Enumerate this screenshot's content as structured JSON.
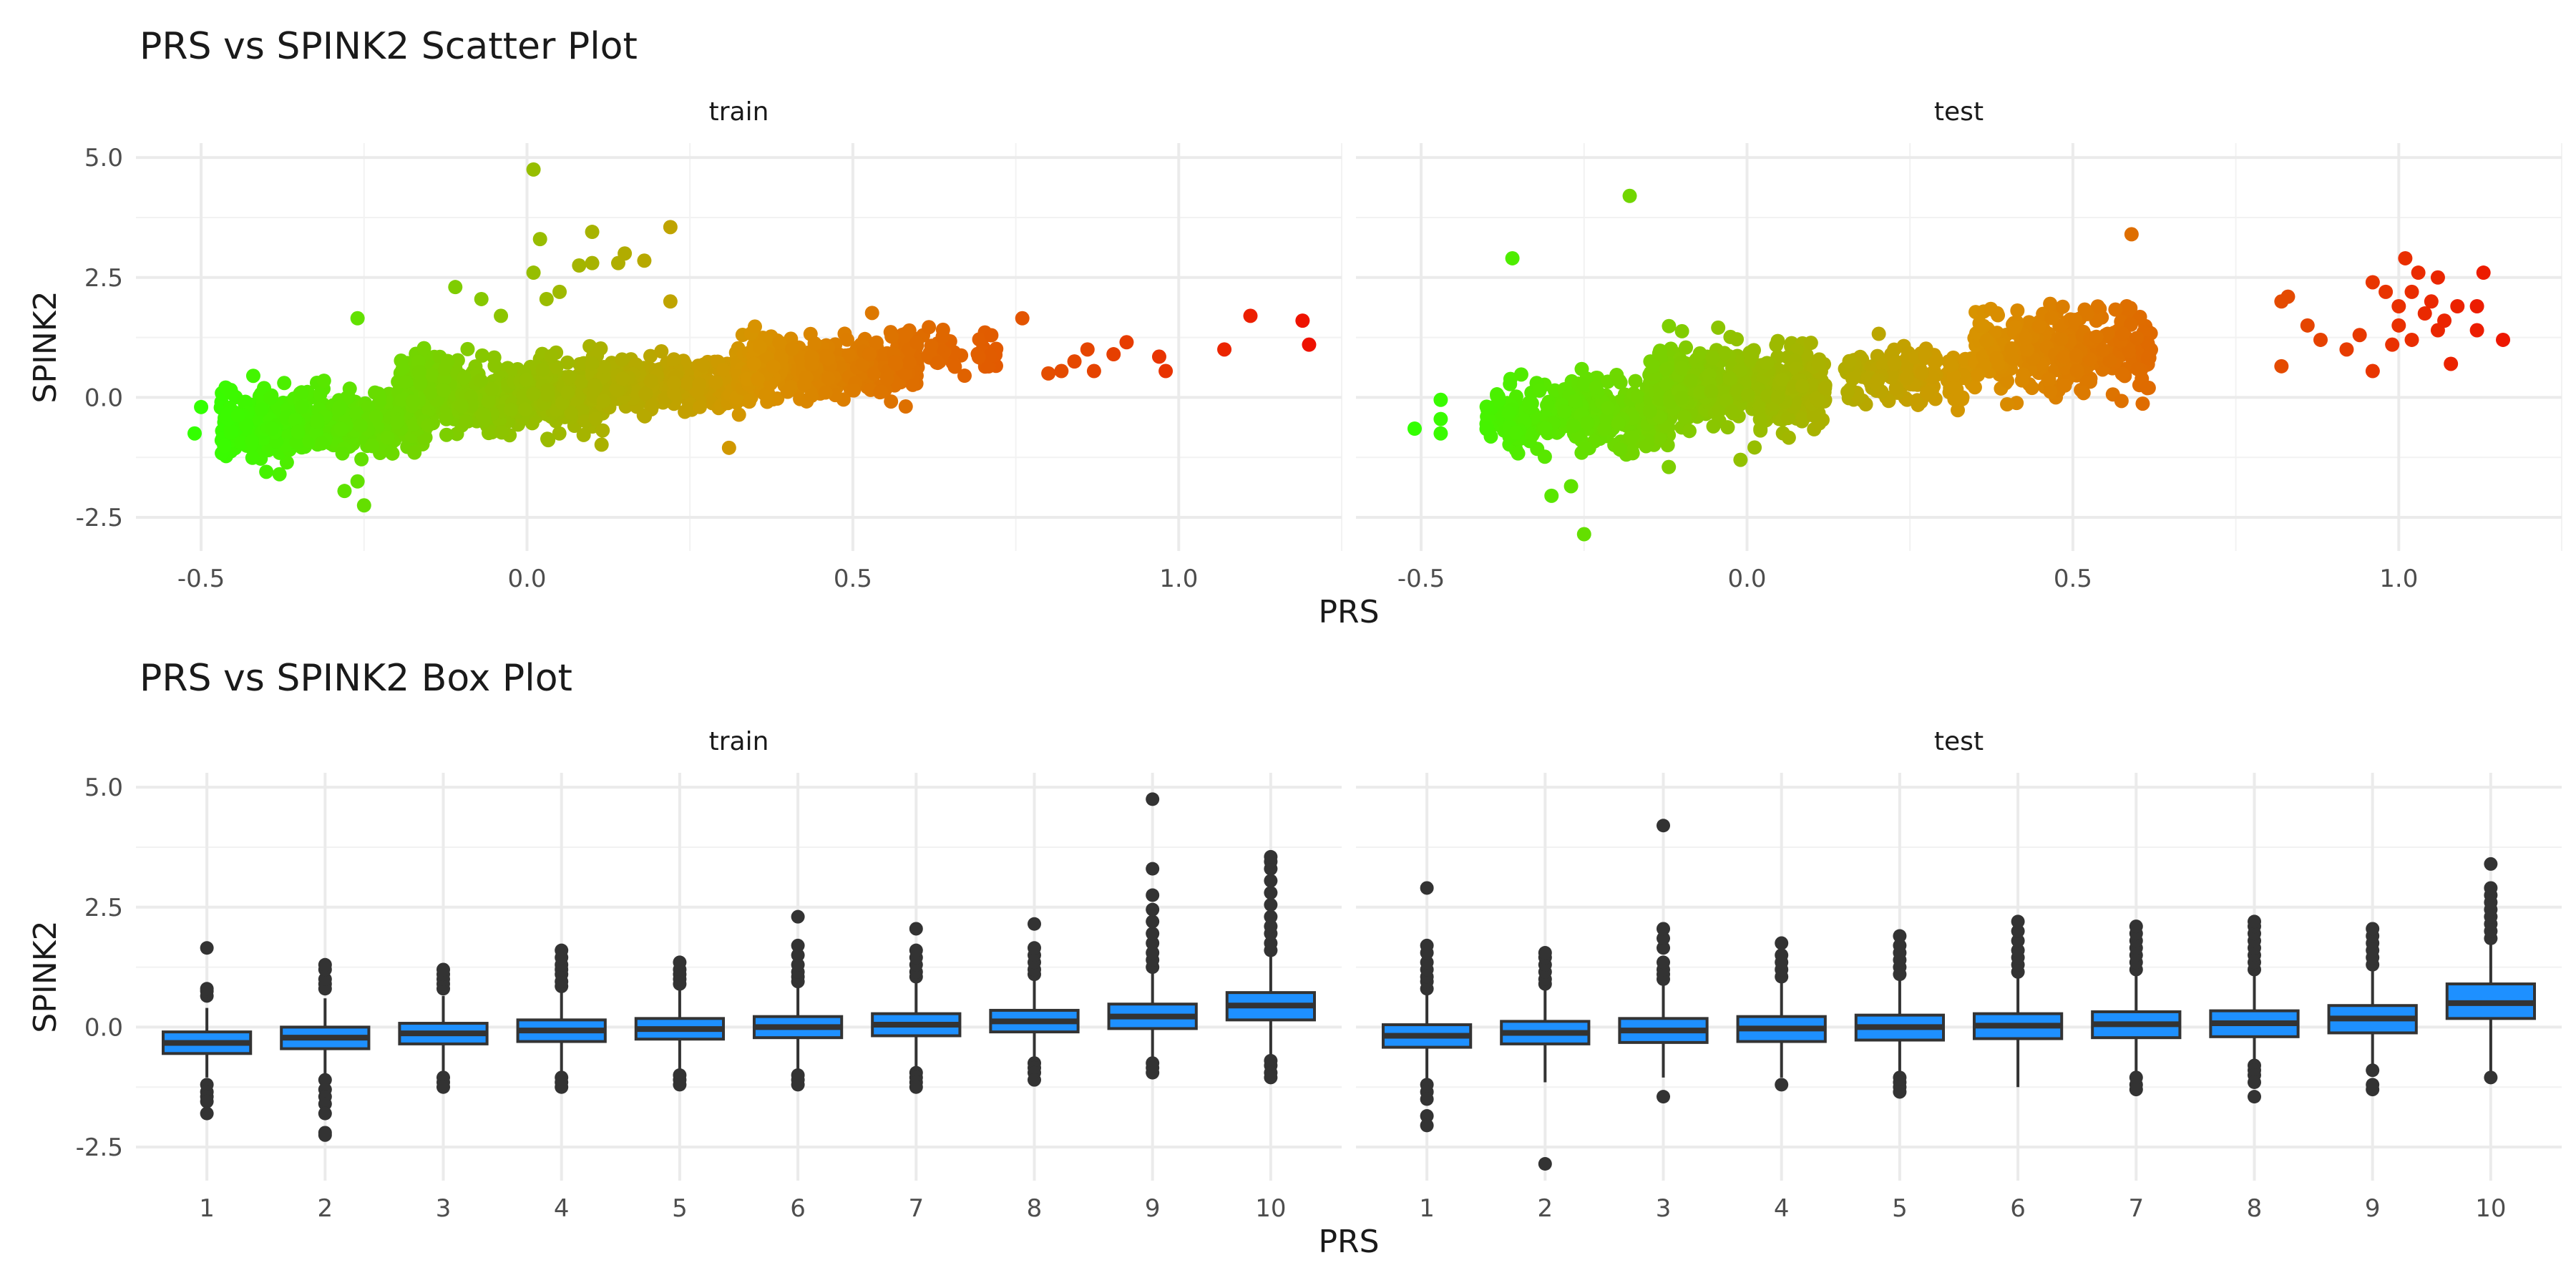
{
  "chart_data": [
    {
      "type": "scatter",
      "title": "PRS vs SPINK2 Scatter Plot",
      "xlabel": "PRS",
      "ylabel": "SPINK2",
      "xlim": [
        -0.6,
        1.25
      ],
      "ylim": [
        -3.2,
        5.3
      ],
      "x_ticks": [
        "-0.5",
        "0.0",
        "0.5",
        "1.0"
      ],
      "y_ticks": [
        "-2.5",
        "0.0",
        "2.5",
        "5.0"
      ],
      "color_scale": {
        "low": "#33ff00",
        "mid": "#d89300",
        "high": "#ee1100",
        "domain": [
          -0.5,
          1.2
        ]
      },
      "facets": [
        {
          "label": "train",
          "clusters": [
            {
              "x_range": [
                -0.47,
                -0.15
              ],
              "y_center": -0.55,
              "y_spread": 0.32,
              "n": 520
            },
            {
              "x_range": [
                -0.2,
                0.12
              ],
              "y_center": 0.05,
              "y_spread": 0.35,
              "n": 680
            },
            {
              "x_range": [
                0.1,
                0.35
              ],
              "y_center": 0.3,
              "y_spread": 0.28,
              "n": 280
            },
            {
              "x_range": [
                0.32,
                0.6
              ],
              "y_center": 0.7,
              "y_spread": 0.3,
              "n": 420
            },
            {
              "x_range": [
                0.55,
                0.72
              ],
              "y_center": 0.95,
              "y_spread": 0.25,
              "n": 60
            }
          ],
          "points": [
            {
              "x": -0.5,
              "y": -0.2
            },
            {
              "x": -0.51,
              "y": -0.75
            },
            {
              "x": -0.42,
              "y": 0.45
            },
            {
              "x": -0.4,
              "y": -1.55
            },
            {
              "x": -0.26,
              "y": -1.75
            },
            {
              "x": -0.25,
              "y": -2.25
            },
            {
              "x": -0.28,
              "y": -1.95
            },
            {
              "x": -0.26,
              "y": 1.65
            },
            {
              "x": -0.11,
              "y": 2.3
            },
            {
              "x": -0.07,
              "y": 2.05
            },
            {
              "x": -0.04,
              "y": 1.7
            },
            {
              "x": 0.01,
              "y": 4.75
            },
            {
              "x": 0.02,
              "y": 3.3
            },
            {
              "x": 0.01,
              "y": 2.6
            },
            {
              "x": 0.03,
              "y": 2.05
            },
            {
              "x": 0.05,
              "y": 2.2
            },
            {
              "x": 0.08,
              "y": 2.75
            },
            {
              "x": 0.1,
              "y": 2.8
            },
            {
              "x": 0.1,
              "y": 3.45
            },
            {
              "x": 0.14,
              "y": 2.8
            },
            {
              "x": 0.15,
              "y": 3.0
            },
            {
              "x": 0.18,
              "y": 2.85
            },
            {
              "x": 0.22,
              "y": 3.55
            },
            {
              "x": 0.22,
              "y": 2.0
            },
            {
              "x": 0.31,
              "y": -1.05
            },
            {
              "x": 0.76,
              "y": 1.65
            },
            {
              "x": 0.8,
              "y": 0.5
            },
            {
              "x": 0.82,
              "y": 0.55
            },
            {
              "x": 0.84,
              "y": 0.75
            },
            {
              "x": 0.86,
              "y": 1.0
            },
            {
              "x": 0.87,
              "y": 0.55
            },
            {
              "x": 0.9,
              "y": 0.9
            },
            {
              "x": 0.92,
              "y": 1.15
            },
            {
              "x": 0.97,
              "y": 0.85
            },
            {
              "x": 0.98,
              "y": 0.55
            },
            {
              "x": 1.07,
              "y": 1.0
            },
            {
              "x": 1.11,
              "y": 1.7
            },
            {
              "x": 1.19,
              "y": 1.6
            },
            {
              "x": 1.2,
              "y": 1.1
            }
          ]
        },
        {
          "label": "test",
          "clusters": [
            {
              "x_range": [
                -0.4,
                -0.12
              ],
              "y_center": -0.35,
              "y_spread": 0.35,
              "n": 380
            },
            {
              "x_range": [
                -0.15,
                0.12
              ],
              "y_center": 0.2,
              "y_spread": 0.4,
              "n": 520
            },
            {
              "x_range": [
                0.15,
                0.35
              ],
              "y_center": 0.45,
              "y_spread": 0.3,
              "n": 160
            },
            {
              "x_range": [
                0.35,
                0.62
              ],
              "y_center": 1.0,
              "y_spread": 0.45,
              "n": 320
            }
          ],
          "points": [
            {
              "x": -0.51,
              "y": -0.65
            },
            {
              "x": -0.47,
              "y": -0.05
            },
            {
              "x": -0.47,
              "y": -0.45
            },
            {
              "x": -0.47,
              "y": -0.75
            },
            {
              "x": -0.36,
              "y": 2.9
            },
            {
              "x": -0.3,
              "y": -2.05
            },
            {
              "x": -0.27,
              "y": -1.85
            },
            {
              "x": -0.25,
              "y": -2.85
            },
            {
              "x": -0.18,
              "y": 4.2
            },
            {
              "x": -0.12,
              "y": -1.45
            },
            {
              "x": -0.01,
              "y": -1.3
            },
            {
              "x": 0.59,
              "y": 3.4
            },
            {
              "x": 0.82,
              "y": 2.0
            },
            {
              "x": 0.83,
              "y": 2.1
            },
            {
              "x": 0.82,
              "y": 0.65
            },
            {
              "x": 0.86,
              "y": 1.5
            },
            {
              "x": 0.88,
              "y": 1.2
            },
            {
              "x": 0.92,
              "y": 1.0
            },
            {
              "x": 0.94,
              "y": 1.3
            },
            {
              "x": 0.96,
              "y": 2.4
            },
            {
              "x": 0.96,
              "y": 0.55
            },
            {
              "x": 0.98,
              "y": 2.2
            },
            {
              "x": 0.99,
              "y": 1.1
            },
            {
              "x": 1.0,
              "y": 1.9
            },
            {
              "x": 1.0,
              "y": 1.5
            },
            {
              "x": 1.01,
              "y": 2.9
            },
            {
              "x": 1.02,
              "y": 1.2
            },
            {
              "x": 1.02,
              "y": 2.2
            },
            {
              "x": 1.03,
              "y": 2.6
            },
            {
              "x": 1.04,
              "y": 1.75
            },
            {
              "x": 1.05,
              "y": 2.0
            },
            {
              "x": 1.06,
              "y": 1.4
            },
            {
              "x": 1.06,
              "y": 2.5
            },
            {
              "x": 1.07,
              "y": 1.6
            },
            {
              "x": 1.08,
              "y": 0.7
            },
            {
              "x": 1.09,
              "y": 1.9
            },
            {
              "x": 1.12,
              "y": 1.4
            },
            {
              "x": 1.12,
              "y": 1.9
            },
            {
              "x": 1.13,
              "y": 2.6
            },
            {
              "x": 1.16,
              "y": 1.2
            }
          ]
        }
      ]
    },
    {
      "type": "box",
      "title": "PRS vs SPINK2 Box Plot",
      "xlabel": "PRS",
      "ylabel": "SPINK2",
      "ylim": [
        -3.2,
        5.3
      ],
      "y_ticks": [
        "-2.5",
        "0.0",
        "2.5",
        "5.0"
      ],
      "categories": [
        "1",
        "2",
        "3",
        "4",
        "5",
        "6",
        "7",
        "8",
        "9",
        "10"
      ],
      "fill_color": "#1e90ff",
      "facets": [
        {
          "label": "train",
          "boxes": [
            {
              "q1": -0.55,
              "median": -0.33,
              "q3": -0.1,
              "whisker_low": -1.05,
              "whisker_high": 0.4,
              "outliers": [
                -1.2,
                -1.35,
                -1.45,
                -1.55,
                -1.8,
                0.65,
                0.75,
                0.8,
                1.65
              ]
            },
            {
              "q1": -0.45,
              "median": -0.22,
              "q3": 0.0,
              "whisker_low": -1.0,
              "whisker_high": 0.6,
              "outliers": [
                -1.1,
                -1.3,
                -1.45,
                -1.6,
                -1.8,
                -2.2,
                -2.25,
                0.8,
                0.9,
                1.0,
                1.2,
                1.3
              ]
            },
            {
              "q1": -0.35,
              "median": -0.13,
              "q3": 0.08,
              "whisker_low": -0.95,
              "whisker_high": 0.65,
              "outliers": [
                -1.05,
                -1.15,
                -1.25,
                0.8,
                0.9,
                1.0,
                1.1,
                1.2
              ]
            },
            {
              "q1": -0.3,
              "median": -0.07,
              "q3": 0.15,
              "whisker_low": -0.95,
              "whisker_high": 0.75,
              "outliers": [
                -1.05,
                -1.15,
                -1.25,
                0.85,
                0.95,
                1.1,
                1.2,
                1.3,
                1.45,
                1.6
              ]
            },
            {
              "q1": -0.25,
              "median": -0.04,
              "q3": 0.18,
              "whisker_low": -0.9,
              "whisker_high": 0.8,
              "outliers": [
                -1.0,
                -1.1,
                -1.2,
                0.9,
                1.0,
                1.1,
                1.2,
                1.35
              ]
            },
            {
              "q1": -0.22,
              "median": 0.0,
              "q3": 0.22,
              "whisker_low": -0.9,
              "whisker_high": 0.85,
              "outliers": [
                -1.0,
                -1.1,
                -1.2,
                0.95,
                1.05,
                1.15,
                1.3,
                1.5,
                1.7,
                2.3
              ]
            },
            {
              "q1": -0.18,
              "median": 0.05,
              "q3": 0.28,
              "whisker_low": -0.85,
              "whisker_high": 0.95,
              "outliers": [
                -0.95,
                -1.05,
                -1.15,
                -1.25,
                1.05,
                1.15,
                1.3,
                1.45,
                1.6,
                2.05
              ]
            },
            {
              "q1": -0.1,
              "median": 0.12,
              "q3": 0.35,
              "whisker_low": -0.7,
              "whisker_high": 1.0,
              "outliers": [
                -0.75,
                -0.85,
                -0.95,
                -1.1,
                1.1,
                1.2,
                1.35,
                1.5,
                1.65,
                2.15
              ]
            },
            {
              "q1": -0.03,
              "median": 0.22,
              "q3": 0.48,
              "whisker_low": -0.7,
              "whisker_high": 1.15,
              "outliers": [
                -0.75,
                -0.85,
                -0.95,
                1.25,
                1.4,
                1.55,
                1.75,
                1.95,
                2.2,
                2.45,
                2.75,
                3.3,
                4.75
              ]
            },
            {
              "q1": 0.15,
              "median": 0.45,
              "q3": 0.72,
              "whisker_low": -0.6,
              "whisker_high": 1.5,
              "outliers": [
                -0.7,
                -0.8,
                -0.95,
                -1.05,
                1.6,
                1.75,
                1.95,
                2.1,
                2.3,
                2.55,
                2.8,
                3.05,
                3.3,
                3.45,
                3.55
              ]
            }
          ]
        },
        {
          "label": "test",
          "boxes": [
            {
              "q1": -0.42,
              "median": -0.18,
              "q3": 0.05,
              "whisker_low": -1.1,
              "whisker_high": 0.7,
              "outliers": [
                -1.2,
                -1.35,
                -1.5,
                -1.85,
                -2.05,
                0.8,
                0.95,
                1.05,
                1.2,
                1.35,
                1.55,
                1.7,
                2.9
              ]
            },
            {
              "q1": -0.35,
              "median": -0.12,
              "q3": 0.12,
              "whisker_low": -1.15,
              "whisker_high": 0.8,
              "outliers": [
                -2.85,
                0.9,
                1.0,
                1.15,
                1.3,
                1.45,
                1.55
              ]
            },
            {
              "q1": -0.32,
              "median": -0.07,
              "q3": 0.18,
              "whisker_low": -1.05,
              "whisker_high": 0.9,
              "outliers": [
                -1.45,
                1.0,
                1.1,
                1.2,
                1.35,
                1.65,
                1.85,
                2.05,
                4.2
              ]
            },
            {
              "q1": -0.3,
              "median": -0.03,
              "q3": 0.22,
              "whisker_low": -1.05,
              "whisker_high": 0.95,
              "outliers": [
                -1.2,
                1.05,
                1.2,
                1.35,
                1.5,
                1.75
              ]
            },
            {
              "q1": -0.27,
              "median": 0.0,
              "q3": 0.25,
              "whisker_low": -1.0,
              "whisker_high": 1.0,
              "outliers": [
                -1.05,
                -1.15,
                -1.25,
                -1.35,
                1.1,
                1.25,
                1.4,
                1.55,
                1.7,
                1.9
              ]
            },
            {
              "q1": -0.24,
              "median": 0.03,
              "q3": 0.28,
              "whisker_low": -1.25,
              "whisker_high": 1.05,
              "outliers": [
                1.15,
                1.3,
                1.45,
                1.6,
                1.8,
                2.0,
                2.2
              ]
            },
            {
              "q1": -0.22,
              "median": 0.06,
              "q3": 0.32,
              "whisker_low": -1.0,
              "whisker_high": 1.1,
              "outliers": [
                -1.05,
                -1.2,
                -1.3,
                1.2,
                1.35,
                1.5,
                1.65,
                1.8,
                1.95,
                2.1
              ]
            },
            {
              "q1": -0.2,
              "median": 0.08,
              "q3": 0.34,
              "whisker_low": -0.75,
              "whisker_high": 1.1,
              "outliers": [
                -0.8,
                -0.9,
                -1.0,
                -1.15,
                -1.45,
                1.2,
                1.35,
                1.5,
                1.65,
                1.8,
                1.95,
                2.1,
                2.2
              ]
            },
            {
              "q1": -0.12,
              "median": 0.18,
              "q3": 0.45,
              "whisker_low": -0.85,
              "whisker_high": 1.2,
              "outliers": [
                -0.9,
                -1.2,
                -1.3,
                1.3,
                1.45,
                1.6,
                1.75,
                1.9,
                2.05
              ]
            },
            {
              "q1": 0.18,
              "median": 0.5,
              "q3": 0.9,
              "whisker_low": -1.0,
              "whisker_high": 1.75,
              "outliers": [
                -1.05,
                1.85,
                2.0,
                2.15,
                2.3,
                2.45,
                2.6,
                2.75,
                2.9,
                3.4
              ]
            }
          ]
        }
      ]
    }
  ]
}
